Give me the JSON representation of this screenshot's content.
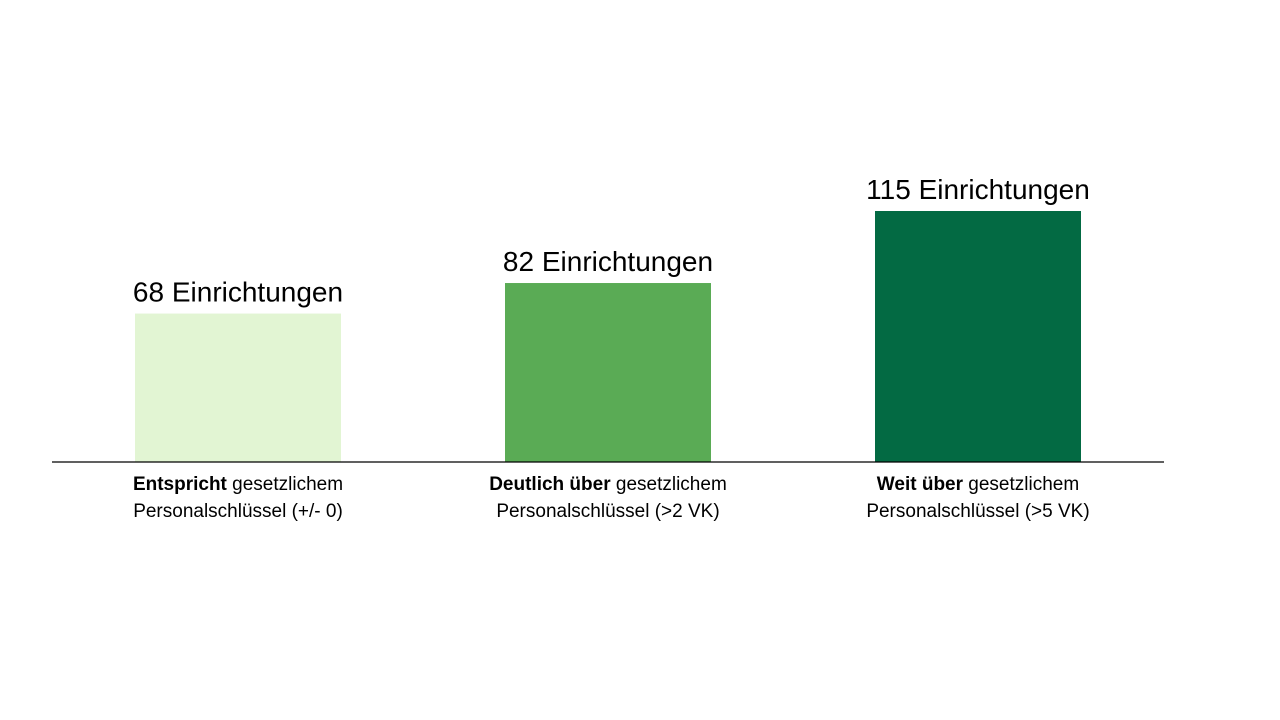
{
  "chart_data": {
    "type": "bar",
    "categories": [
      {
        "bold": "Entspricht",
        "rest": " gesetzlichem",
        "line2": "Personalschlüssel (+/- 0)"
      },
      {
        "bold": "Deutlich über",
        "rest": " gesetzlichem",
        "line2": "Personalschlüssel (>2 VK)"
      },
      {
        "bold": "Weit über",
        "rest": " gesetzlichem",
        "line2": "Personalschlüssel (>5 VK)"
      }
    ],
    "values": [
      68,
      82,
      115
    ],
    "data_labels": [
      "68 Einrichtungen",
      "82 Einrichtungen",
      "115 Einrichtungen"
    ],
    "colors": [
      "#e2f5d3",
      "#5aab55",
      "#036a43"
    ],
    "axis_color": "#000000",
    "grid": false,
    "legend": "none"
  }
}
